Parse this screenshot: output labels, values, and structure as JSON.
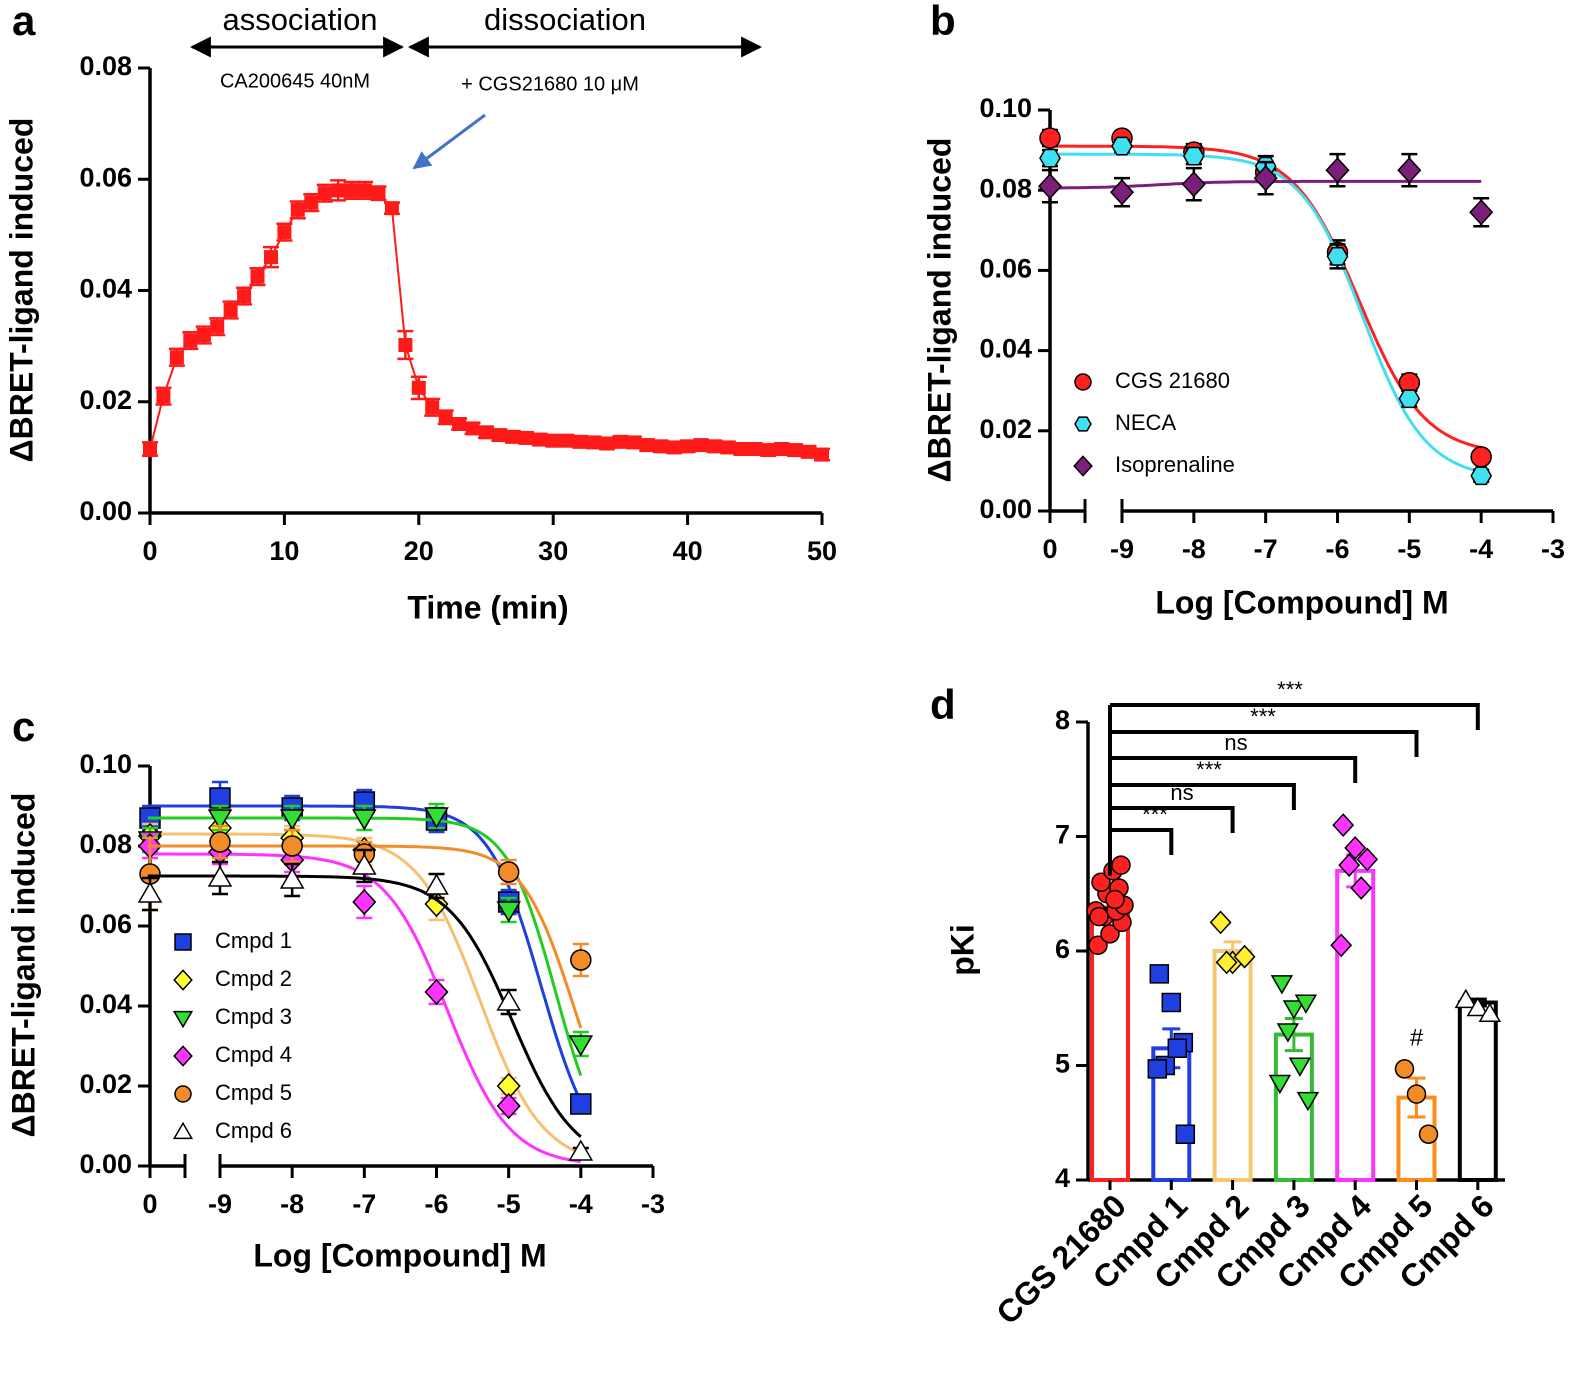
{
  "chart_data": [
    {
      "panel": "a",
      "type": "line",
      "xlabel": "Time (min)",
      "ylabel": "ΔBRET-ligand induced",
      "annotations": [
        {
          "text": "association",
          "color": "#000000"
        },
        {
          "text": "dissociation",
          "color": "#000000"
        },
        {
          "text": "CA200645 40nM",
          "color": "#ff1a1a"
        },
        {
          "text": "+ CGS21680 10 μM",
          "color": "#1f6fd0"
        }
      ],
      "color": "#ff1a1a",
      "x": [
        0,
        1,
        2,
        3,
        4,
        5,
        6,
        7,
        8,
        9,
        10,
        11,
        12,
        13,
        14,
        15,
        16,
        17,
        18,
        19,
        20,
        21,
        22,
        23,
        24,
        25,
        26,
        27,
        28,
        29,
        30,
        31,
        32,
        33,
        34,
        35,
        36,
        37,
        38,
        39,
        40,
        41,
        42,
        43,
        44,
        45,
        46,
        47,
        48,
        49,
        50
      ],
      "values": [
        0.0115,
        0.021,
        0.028,
        0.031,
        0.032,
        0.0335,
        0.0365,
        0.039,
        0.0425,
        0.046,
        0.0505,
        0.0545,
        0.0558,
        0.0575,
        0.058,
        0.058,
        0.058,
        0.0575,
        0.0548,
        0.0302,
        0.0225,
        0.019,
        0.0172,
        0.016,
        0.0152,
        0.0145,
        0.014,
        0.0137,
        0.0135,
        0.0132,
        0.013,
        0.013,
        0.0128,
        0.0127,
        0.0125,
        0.0128,
        0.0127,
        0.0122,
        0.012,
        0.0118,
        0.012,
        0.0122,
        0.012,
        0.0118,
        0.0115,
        0.0115,
        0.0113,
        0.0115,
        0.0113,
        0.011,
        0.0105
      ],
      "errors": [
        0.0012,
        0.0015,
        0.0015,
        0.0015,
        0.0015,
        0.0015,
        0.0015,
        0.0015,
        0.0015,
        0.0018,
        0.0015,
        0.0015,
        0.0015,
        0.0015,
        0.0018,
        0.0015,
        0.0015,
        0.0012,
        0.001,
        0.0025,
        0.002,
        0.0015,
        0.0012,
        0.001,
        0.001,
        0.001,
        0.001,
        0.001,
        0.001,
        0.001,
        0.001,
        0.001,
        0.001,
        0.001,
        0.001,
        0.001,
        0.001,
        0.001,
        0.001,
        0.001,
        0.001,
        0.001,
        0.001,
        0.001,
        0.001,
        0.001,
        0.001,
        0.001,
        0.001,
        0.001,
        0.001
      ],
      "xlim": [
        0,
        50
      ],
      "xticks": [
        0,
        10,
        20,
        30,
        40,
        50
      ],
      "ylim": [
        0,
        0.08
      ],
      "yticks": [
        {
          "value": 0,
          "label": "0.00"
        },
        {
          "value": 0.02,
          "label": "0.02"
        },
        {
          "value": 0.04,
          "label": "0.04"
        },
        {
          "value": 0.06,
          "label": "0.06"
        },
        {
          "value": 0.08,
          "label": "0.08"
        }
      ]
    },
    {
      "panel": "b",
      "type": "scatter",
      "xlabel": "Log [Compound] M",
      "ylabel": "ΔBRET-ligand induced",
      "x": [
        0,
        -9,
        -8,
        -7,
        -6,
        -5,
        -4
      ],
      "xlim": [
        -9,
        -3
      ],
      "xticks": [
        0,
        -9,
        -8,
        -7,
        -6,
        -5,
        -4,
        -3
      ],
      "ylim": [
        0,
        0.1
      ],
      "yticks": [
        {
          "value": 0,
          "label": "0.00"
        },
        {
          "value": 0.02,
          "label": "0.02"
        },
        {
          "value": 0.04,
          "label": "0.04"
        },
        {
          "value": 0.06,
          "label": "0.06"
        },
        {
          "value": 0.08,
          "label": "0.08"
        },
        {
          "value": 0.1,
          "label": "0.10"
        }
      ],
      "series": [
        {
          "name": "CGS 21680",
          "color": "#ff2020",
          "curve_color": "#ff2020",
          "marker": "circle",
          "values": [
            0.093,
            0.093,
            0.0895,
            0.0845,
            0.0645,
            0.032,
            0.0135
          ],
          "errors": [
            0.002,
            0.0015,
            0.002,
            0.0025,
            0.003,
            0.002,
            0.0015
          ],
          "fit": {
            "top": 0.091,
            "bottom": 0.014,
            "log_ic50": -5.7,
            "hill": 0.95
          }
        },
        {
          "name": "NECA",
          "color": "#40e0f0",
          "curve_color": "#40e0f0",
          "marker": "hexagon",
          "values": [
            0.088,
            0.091,
            0.0885,
            0.086,
            0.0635,
            0.028,
            0.0088
          ],
          "errors": [
            0.002,
            0.0015,
            0.002,
            0.0025,
            0.003,
            0.002,
            0.0015
          ],
          "fit": {
            "top": 0.089,
            "bottom": 0.008,
            "log_ic50": -5.65,
            "hill": 1.0
          }
        },
        {
          "name": "Isoprenaline",
          "color": "#7b1f7b",
          "curve_color": "#7b1f7b",
          "marker": "diamond",
          "values": [
            0.081,
            0.0795,
            0.0815,
            0.083,
            0.085,
            0.085,
            0.0745
          ],
          "errors": [
            0.004,
            0.0035,
            0.004,
            0.004,
            0.004,
            0.004,
            0.0035
          ],
          "fit": {
            "top": 0.0805,
            "bottom": 0.0822,
            "log_ic50": -8.5,
            "hill": 1.0
          }
        }
      ]
    },
    {
      "panel": "c",
      "type": "scatter",
      "xlabel": "Log [Compound] M",
      "ylabel": "ΔBRET-ligand induced",
      "x": [
        0,
        -9,
        -8,
        -7,
        -6,
        -5,
        -4
      ],
      "xlim": [
        -9,
        -3
      ],
      "xticks": [
        0,
        -9,
        -8,
        -7,
        -6,
        -5,
        -4,
        -3
      ],
      "ylim": [
        0,
        0.1
      ],
      "yticks": [
        {
          "value": 0,
          "label": "0.00"
        },
        {
          "value": 0.02,
          "label": "0.02"
        },
        {
          "value": 0.04,
          "label": "0.04"
        },
        {
          "value": 0.06,
          "label": "0.06"
        },
        {
          "value": 0.08,
          "label": "0.08"
        },
        {
          "value": 0.1,
          "label": "0.10"
        }
      ],
      "series": [
        {
          "name": "Cmpd 1",
          "color": "#1f3fe0",
          "curve_color": "#1f3fe0",
          "marker": "square",
          "values": [
            0.087,
            0.092,
            0.0895,
            0.091,
            0.0865,
            0.066,
            0.0155
          ],
          "errors": [
            0.003,
            0.004,
            0.003,
            0.003,
            0.003,
            0.003,
            0.002
          ],
          "fit": {
            "top": 0.09,
            "bottom": 0.0,
            "log_ic50": -4.55,
            "hill": 1.2
          }
        },
        {
          "name": "Cmpd 2",
          "color": "#ffff33",
          "curve_color": "#f5c070",
          "marker": "diamond",
          "values": [
            0.0825,
            0.0845,
            0.082,
            0.079,
            0.0655,
            0.02,
            null
          ],
          "errors": [
            0.003,
            0.003,
            0.003,
            0.003,
            0.004,
            0.002,
            null
          ],
          "fit": {
            "top": 0.083,
            "bottom": 0.0,
            "log_ic50": -5.4,
            "hill": 1.0
          }
        },
        {
          "name": "Cmpd 3",
          "color": "#33dd33",
          "curve_color": "#22cc22",
          "marker": "triangle-down",
          "values": [
            0.0815,
            0.087,
            0.087,
            0.087,
            0.0875,
            0.064,
            0.0305
          ],
          "errors": [
            0.003,
            0.003,
            0.003,
            0.003,
            0.003,
            0.003,
            0.003
          ],
          "fit": {
            "top": 0.087,
            "bottom": 0.0,
            "log_ic50": -4.35,
            "hill": 1.3
          }
        },
        {
          "name": "Cmpd 4",
          "color": "#ff33ff",
          "curve_color": "#ff33ff",
          "marker": "diamond",
          "values": [
            0.08,
            0.0785,
            0.0765,
            0.066,
            0.0435,
            0.015,
            null
          ],
          "errors": [
            0.003,
            0.003,
            0.003,
            0.004,
            0.003,
            0.002,
            null
          ],
          "fit": {
            "top": 0.078,
            "bottom": 0.0,
            "log_ic50": -5.85,
            "hill": 1.0
          }
        },
        {
          "name": "Cmpd 5",
          "color": "#f28c28",
          "curve_color": "#f28c28",
          "marker": "circle",
          "values": [
            0.073,
            0.081,
            0.08,
            0.078,
            null,
            0.0735,
            0.0515
          ],
          "errors": [
            0.009,
            0.004,
            0.004,
            0.003,
            null,
            0.003,
            0.004
          ],
          "fit": {
            "top": 0.08,
            "bottom": 0.0,
            "log_ic50": -4.1,
            "hill": 1.2
          }
        },
        {
          "name": "Cmpd 6",
          "color": "#ffffff",
          "curve_color": "#000000",
          "marker": "triangle-up",
          "values": [
            0.068,
            0.072,
            0.0715,
            0.075,
            0.07,
            0.041,
            0.0035
          ],
          "errors": [
            0.004,
            0.004,
            0.004,
            0.004,
            0.003,
            0.003,
            0.001
          ],
          "fit": {
            "top": 0.0725,
            "bottom": 0.0,
            "log_ic50": -4.95,
            "hill": 1.0
          }
        }
      ]
    },
    {
      "panel": "d",
      "type": "bar",
      "ylabel": "pKi",
      "categories": [
        "CGS 21680",
        "Cmpd 1",
        "Cmpd 2",
        "Cmpd 3",
        "Cmpd 4",
        "Cmpd 5",
        "Cmpd 6"
      ],
      "values": [
        6.38,
        5.15,
        6.0,
        5.27,
        6.7,
        4.72,
        5.55
      ],
      "errors": [
        0.06,
        0.17,
        0.08,
        0.14,
        0.14,
        0.17,
        0.03
      ],
      "colors": [
        "#ff2020",
        "#1f3fe0",
        "#f5c870",
        "#33bb33",
        "#ff33ff",
        "#ff8c1a",
        "#000000"
      ],
      "point_colors": [
        "#ff2020",
        "#1f3fe0",
        "#ffee33",
        "#33dd33",
        "#ff33ff",
        "#f28c28",
        "#ffffff"
      ],
      "point_markers": [
        "circle",
        "square",
        "diamond",
        "triangle-down",
        "diamond",
        "circle",
        "triangle-up"
      ],
      "points": [
        [
          6.05,
          6.15,
          6.25,
          6.3,
          6.35,
          6.35,
          6.4,
          6.5,
          6.55,
          6.6,
          6.7,
          6.75,
          6.3,
          6.45
        ],
        [
          5.8,
          5.55,
          5.2,
          5.0,
          5.15,
          4.97,
          4.4
        ],
        [
          6.25,
          5.9,
          5.95,
          5.9
        ],
        [
          5.72,
          5.5,
          5.55,
          5.3,
          5.0,
          4.85,
          4.7
        ],
        [
          7.1,
          6.9,
          6.8,
          6.75,
          6.55,
          6.05
        ],
        [
          4.97,
          4.75,
          4.4
        ],
        [
          5.57,
          5.5,
          5.45
        ]
      ],
      "comparisons": [
        {
          "to": "Cmpd 1",
          "label": "***"
        },
        {
          "to": "Cmpd 2",
          "label": "ns"
        },
        {
          "to": "Cmpd 3",
          "label": "***"
        },
        {
          "to": "Cmpd 4",
          "label": "ns"
        },
        {
          "to": "Cmpd 5",
          "label": "***"
        },
        {
          "to": "Cmpd 6",
          "label": "***"
        }
      ],
      "annotations": [
        {
          "category": "Cmpd 5",
          "text": "#"
        }
      ],
      "ylim": [
        4,
        8
      ],
      "yticks": [
        4,
        5,
        6,
        7,
        8
      ]
    }
  ]
}
